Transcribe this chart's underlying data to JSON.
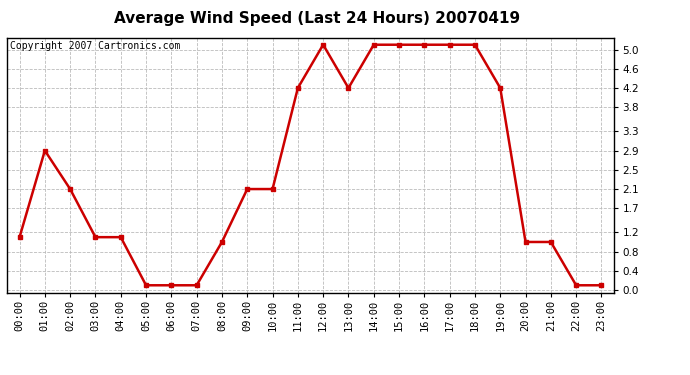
{
  "title": "Average Wind Speed (Last 24 Hours) 20070419",
  "copyright_text": "Copyright 2007 Cartronics.com",
  "x_labels": [
    "00:00",
    "01:00",
    "02:00",
    "03:00",
    "04:00",
    "05:00",
    "06:00",
    "07:00",
    "08:00",
    "09:00",
    "10:00",
    "11:00",
    "12:00",
    "13:00",
    "14:00",
    "15:00",
    "16:00",
    "17:00",
    "18:00",
    "19:00",
    "20:00",
    "21:00",
    "22:00",
    "23:00"
  ],
  "y_values": [
    1.1,
    2.9,
    2.1,
    1.1,
    1.1,
    0.1,
    0.1,
    0.1,
    1.0,
    2.1,
    2.1,
    4.2,
    5.1,
    4.2,
    5.1,
    5.1,
    5.1,
    5.1,
    5.1,
    4.2,
    1.0,
    1.0,
    0.1,
    0.1
  ],
  "line_color": "#cc0000",
  "marker": "s",
  "marker_size": 3,
  "line_width": 1.8,
  "background_color": "#ffffff",
  "plot_bg_color": "#ffffff",
  "grid_color": "#bbbbbb",
  "grid_style": "--",
  "ylim": [
    -0.05,
    5.25
  ],
  "yticks": [
    0.0,
    0.4,
    0.8,
    1.2,
    1.7,
    2.1,
    2.5,
    2.9,
    3.3,
    3.8,
    4.2,
    4.6,
    5.0
  ],
  "title_fontsize": 11,
  "tick_fontsize": 7.5,
  "copyright_fontsize": 7
}
